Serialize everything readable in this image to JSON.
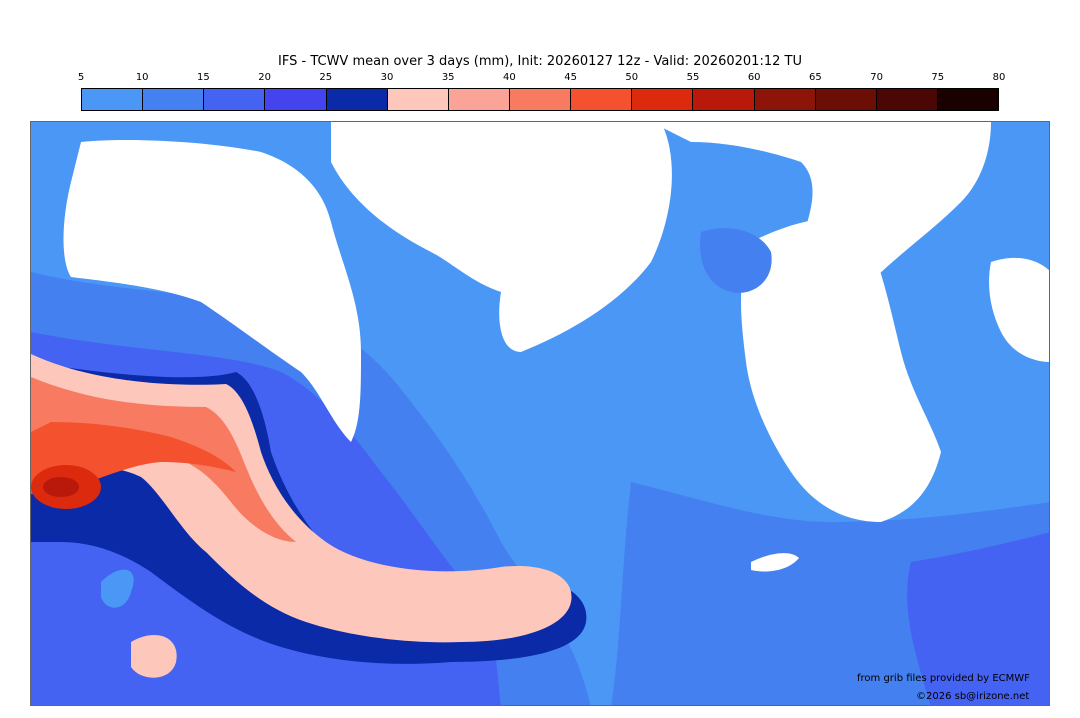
{
  "title": "IFS - TCWV mean over 3 days (mm), Init: 20260127 12z - Valid: 20260201:12 TU",
  "colorbar": {
    "ticks": [
      "5",
      "10",
      "15",
      "20",
      "25",
      "30",
      "35",
      "40",
      "45",
      "50",
      "55",
      "60",
      "65",
      "70",
      "75",
      "80"
    ],
    "colors": [
      "#4a97f5",
      "#4580f0",
      "#4563f3",
      "#4444ee",
      "#0a2aa8",
      "#fdc7bb",
      "#faa397",
      "#f77a61",
      "#f4522f",
      "#dc2a0e",
      "#b8190b",
      "#8c1409",
      "#6a0e06",
      "#4a0703",
      "#1a0000"
    ]
  },
  "map": {
    "field_colors": {
      "low": "#4a97f5",
      "mid": "#4580f0",
      "high": "#4563f3",
      "deep": "#0a2aa8",
      "plume_light": "#fdc7bb",
      "plume_mid": "#f77a61",
      "plume_core": "#dc2a0e",
      "dry_land": "#ffffff"
    }
  },
  "credits": {
    "source": "from grib files provided by ECMWF",
    "copyright": "©2026 sb@irizone.net"
  }
}
